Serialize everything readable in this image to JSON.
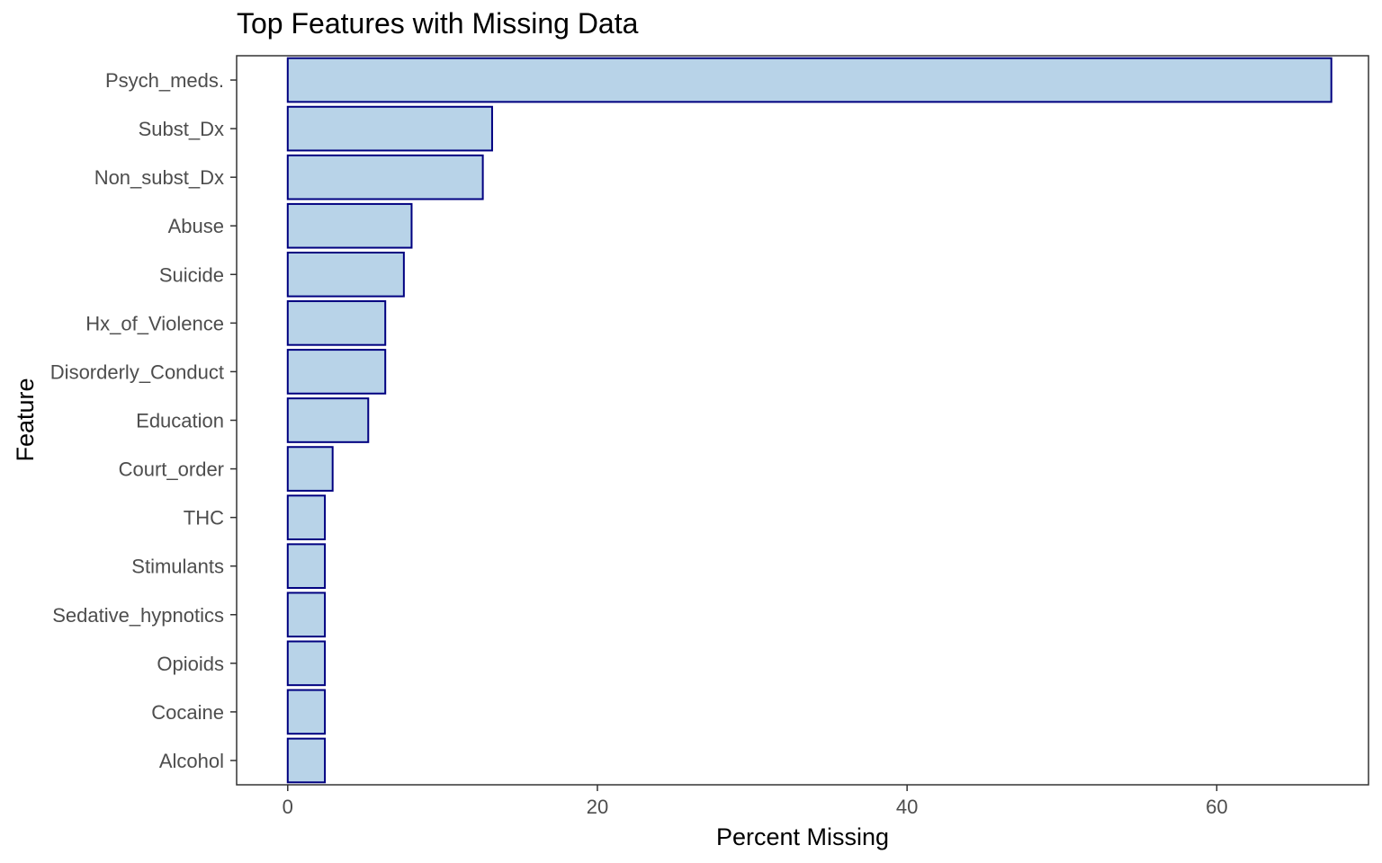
{
  "chart_data": {
    "type": "bar",
    "orientation": "horizontal",
    "title": "Top Features with Missing Data",
    "xlabel": "Percent Missing",
    "ylabel": "Feature",
    "xlim": [
      -3.3,
      69.8
    ],
    "xticks": [
      0,
      20,
      40,
      60
    ],
    "grid": false,
    "categories": [
      "Psych_meds.",
      "Subst_Dx",
      "Non_subst_Dx",
      "Abuse",
      "Suicide",
      "Hx_of_Violence",
      "Disorderly_Conduct",
      "Education",
      "Court_order",
      "THC",
      "Stimulants",
      "Sedative_hypnotics",
      "Opioids",
      "Cocaine",
      "Alcohol"
    ],
    "values": [
      67.4,
      13.2,
      12.6,
      8.0,
      7.5,
      6.3,
      6.3,
      5.2,
      2.9,
      2.4,
      2.4,
      2.4,
      2.4,
      2.4,
      2.4
    ],
    "colors": {
      "fill": "#b8d3e8",
      "stroke": "#000080"
    }
  }
}
